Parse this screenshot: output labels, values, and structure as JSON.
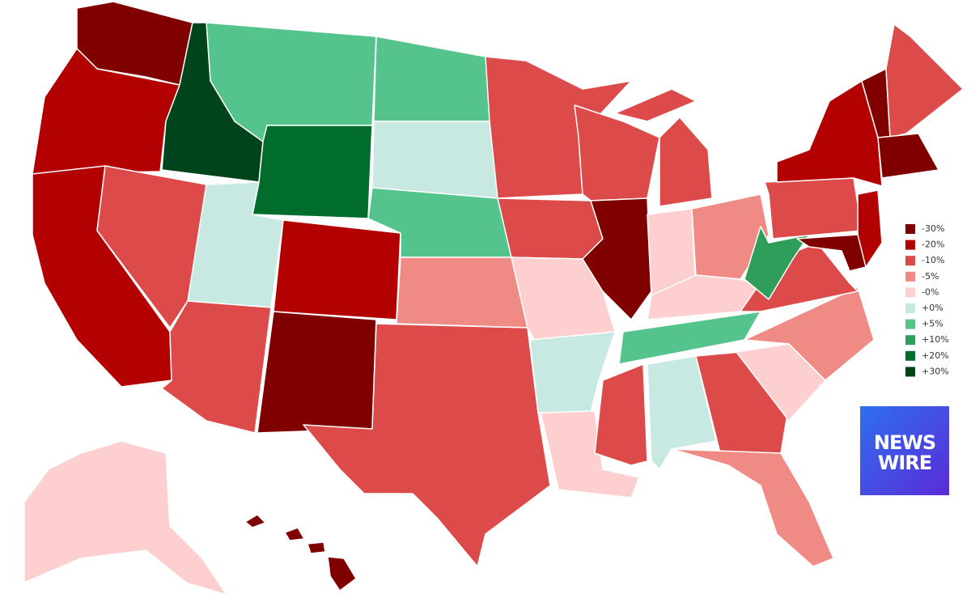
{
  "legend": [
    {
      "label": "-30%",
      "color": "#800000"
    },
    {
      "label": "-20%",
      "color": "#b30000"
    },
    {
      "label": "-10%",
      "color": "#dc4a4a"
    },
    {
      "label": "-5%",
      "color": "#ef8a84"
    },
    {
      "label": "-0%",
      "color": "#fdd0cf"
    },
    {
      "label": "+0%",
      "color": "#c8e8e2"
    },
    {
      "label": "+5%",
      "color": "#55c38c"
    },
    {
      "label": "+10%",
      "color": "#2e9e5a"
    },
    {
      "label": "+20%",
      "color": "#006d2c"
    },
    {
      "label": "+30%",
      "color": "#00441b"
    }
  ],
  "logo": {
    "lines": [
      "NEWS",
      "WIRE"
    ]
  }
}
